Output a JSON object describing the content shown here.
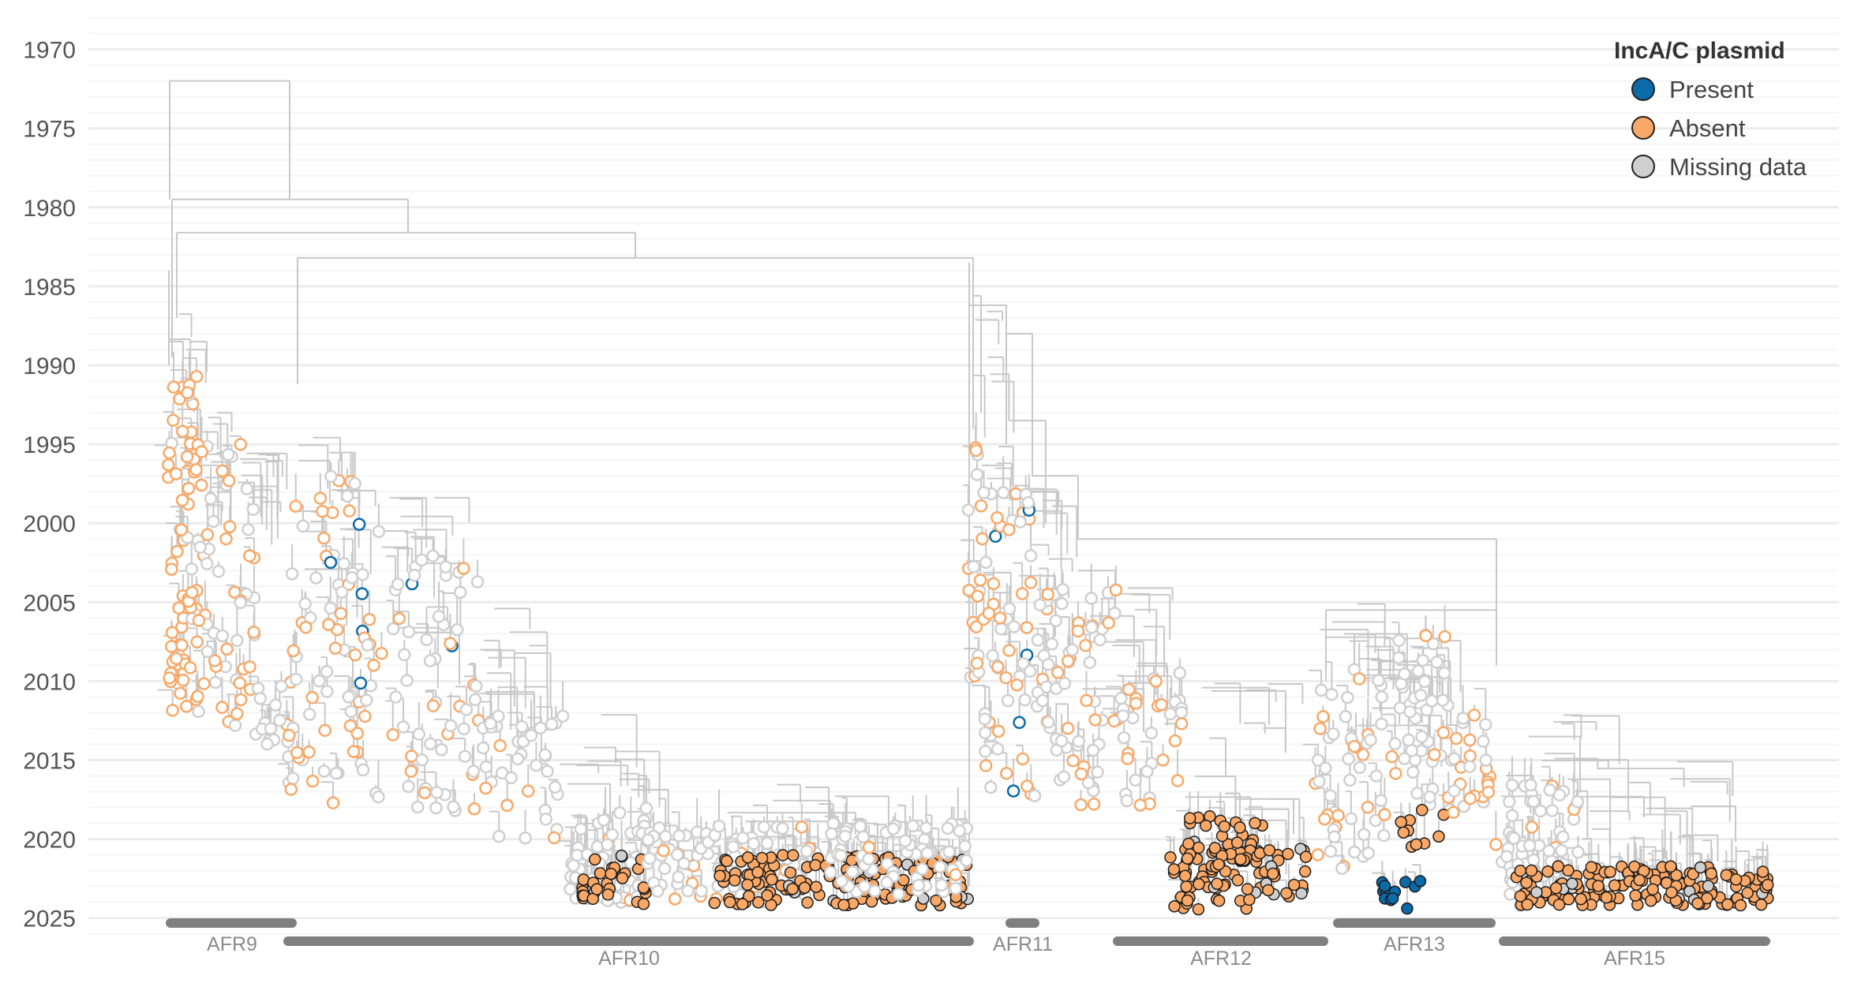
{
  "chart_data": {
    "type": "scatter",
    "y_axis": {
      "range": [
        1968,
        2026
      ],
      "reversed": true,
      "ticks": [
        1970,
        1975,
        1980,
        1985,
        1990,
        1995,
        2000,
        2005,
        2010,
        2015,
        2020,
        2025
      ],
      "minor_grid_step": 1
    },
    "grid": true,
    "legend": {
      "title": "IncA/C plasmid",
      "position": "top-right",
      "entries": [
        {
          "label": "Present",
          "color": "#0b6aa8"
        },
        {
          "label": "Absent",
          "color": "#f9a867"
        },
        {
          "label": "Missing data",
          "color": "#cfcfcf"
        }
      ]
    },
    "colors": {
      "branch": "#c8c8c8",
      "grid_major": "#ececec",
      "grid_minor": "#f5f5f5",
      "clade_bar": "#7f7f7f",
      "present": "#0b6aa8",
      "absent": "#f9a867",
      "missing": "#cfcfcf"
    },
    "clades": [
      {
        "label": "AFR9"
      },
      {
        "label": "AFR10"
      },
      {
        "label": "AFR11"
      },
      {
        "label": "AFR12"
      },
      {
        "label": "AFR13"
      },
      {
        "label": "AFR15"
      }
    ]
  }
}
